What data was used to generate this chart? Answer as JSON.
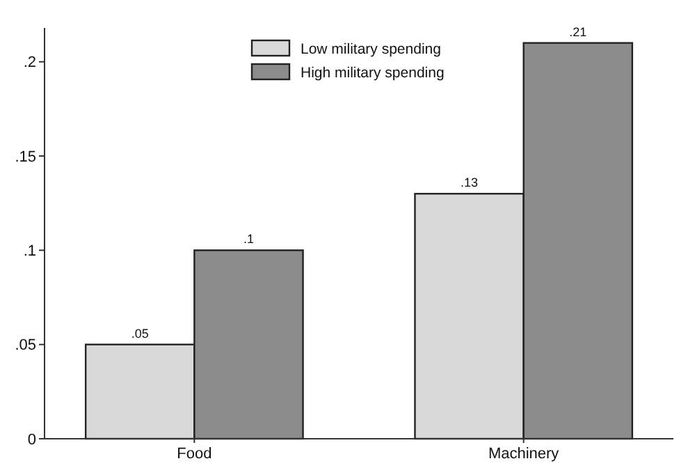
{
  "chart_data": {
    "type": "bar",
    "categories": [
      "Food",
      "Machinery"
    ],
    "series": [
      {
        "name": "Low military spending",
        "color": "#d9d9d9",
        "values": [
          0.05,
          0.13
        ],
        "value_labels": [
          ".05",
          ".13"
        ]
      },
      {
        "name": "High military spending",
        "color": "#8c8c8c",
        "values": [
          0.1,
          0.21
        ],
        "value_labels": [
          ".1",
          ".21"
        ]
      }
    ],
    "ylim": [
      0,
      0.218
    ],
    "yticks": [
      {
        "value": 0,
        "label": "0"
      },
      {
        "value": 0.05,
        "label": ".05"
      },
      {
        "value": 0.1,
        "label": ".1"
      },
      {
        "value": 0.15,
        "label": ".15"
      },
      {
        "value": 0.2,
        "label": ".2"
      }
    ],
    "legend": "top",
    "grid": false
  }
}
